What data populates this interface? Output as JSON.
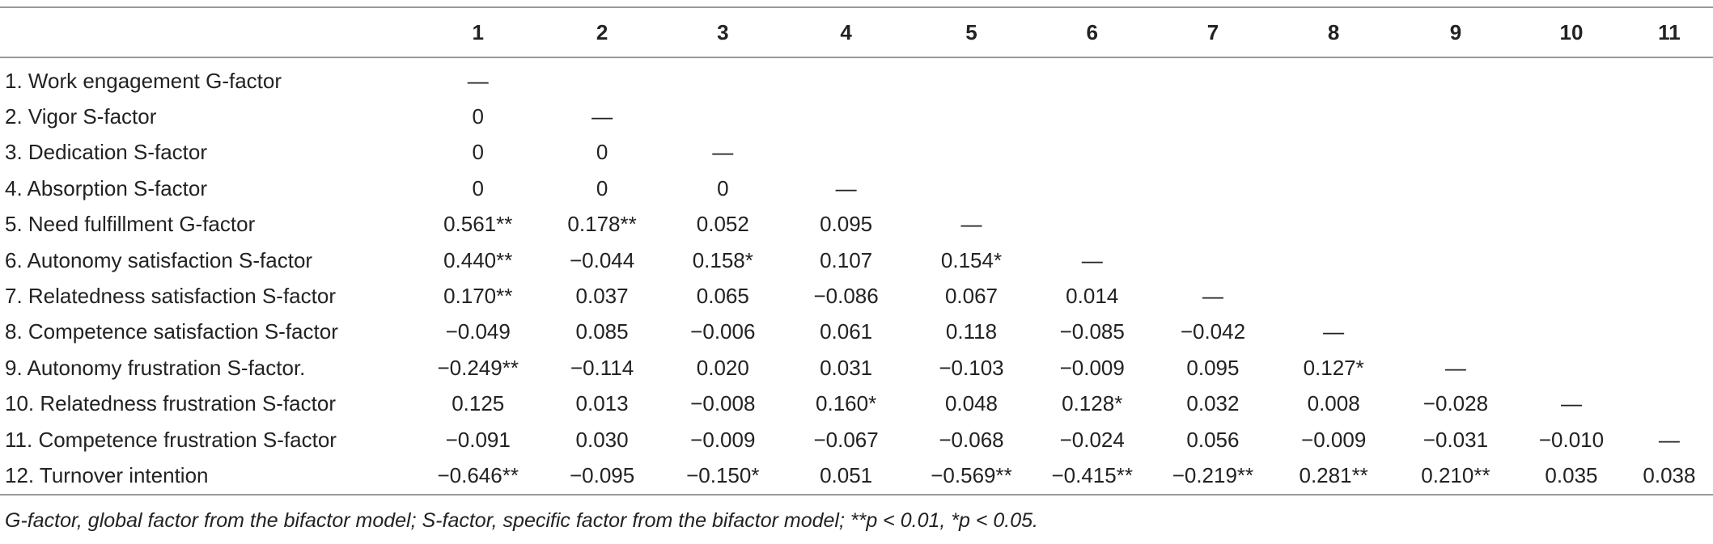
{
  "table": {
    "columns": [
      "",
      "1",
      "2",
      "3",
      "4",
      "5",
      "6",
      "7",
      "8",
      "9",
      "10",
      "11"
    ],
    "rows": [
      {
        "label": "1. Work engagement G-factor",
        "cells": [
          "—",
          "",
          "",
          "",
          "",
          "",
          "",
          "",
          "",
          "",
          ""
        ]
      },
      {
        "label": "2. Vigor S-factor",
        "cells": [
          "0",
          "—",
          "",
          "",
          "",
          "",
          "",
          "",
          "",
          "",
          ""
        ]
      },
      {
        "label": "3. Dedication S-factor",
        "cells": [
          "0",
          "0",
          "—",
          "",
          "",
          "",
          "",
          "",
          "",
          "",
          ""
        ]
      },
      {
        "label": "4. Absorption S-factor",
        "cells": [
          "0",
          "0",
          "0",
          "—",
          "",
          "",
          "",
          "",
          "",
          "",
          ""
        ]
      },
      {
        "label": "5. Need fulfillment G-factor",
        "cells": [
          "0.561**",
          "0.178**",
          "0.052",
          "0.095",
          "—",
          "",
          "",
          "",
          "",
          "",
          ""
        ]
      },
      {
        "label": "6. Autonomy satisfaction S-factor",
        "cells": [
          "0.440**",
          "−0.044",
          "0.158*",
          "0.107",
          "0.154*",
          "—",
          "",
          "",
          "",
          "",
          ""
        ]
      },
      {
        "label": "7. Relatedness satisfaction S-factor",
        "cells": [
          "0.170**",
          "0.037",
          "0.065",
          "−0.086",
          "0.067",
          "0.014",
          "—",
          "",
          "",
          "",
          ""
        ]
      },
      {
        "label": "8. Competence satisfaction S-factor",
        "cells": [
          "−0.049",
          "0.085",
          "−0.006",
          "0.061",
          "0.118",
          "−0.085",
          "−0.042",
          "—",
          "",
          "",
          ""
        ]
      },
      {
        "label": "9. Autonomy frustration S-factor.",
        "cells": [
          "−0.249**",
          "−0.114",
          "0.020",
          "0.031",
          "−0.103",
          "−0.009",
          "0.095",
          "0.127*",
          "—",
          "",
          ""
        ]
      },
      {
        "label": "10. Relatedness frustration S-factor",
        "cells": [
          "0.125",
          "0.013",
          "−0.008",
          "0.160*",
          "0.048",
          "0.128*",
          "0.032",
          "0.008",
          "−0.028",
          "—",
          ""
        ]
      },
      {
        "label": "11. Competence frustration S-factor",
        "cells": [
          "−0.091",
          "0.030",
          "−0.009",
          "−0.067",
          "−0.068",
          "−0.024",
          "0.056",
          "−0.009",
          "−0.031",
          "−0.010",
          "—"
        ]
      },
      {
        "label": "12. Turnover intention",
        "cells": [
          "−0.646**",
          "−0.095",
          "−0.150*",
          "0.051",
          "−0.569**",
          "−0.415**",
          "−0.219**",
          "0.281**",
          "0.210**",
          "0.035",
          "0.038"
        ]
      }
    ]
  },
  "note": "G-factor, global factor from the bifactor model; S-factor, specific factor from the bifactor model; **p < 0.01, *p < 0.05."
}
